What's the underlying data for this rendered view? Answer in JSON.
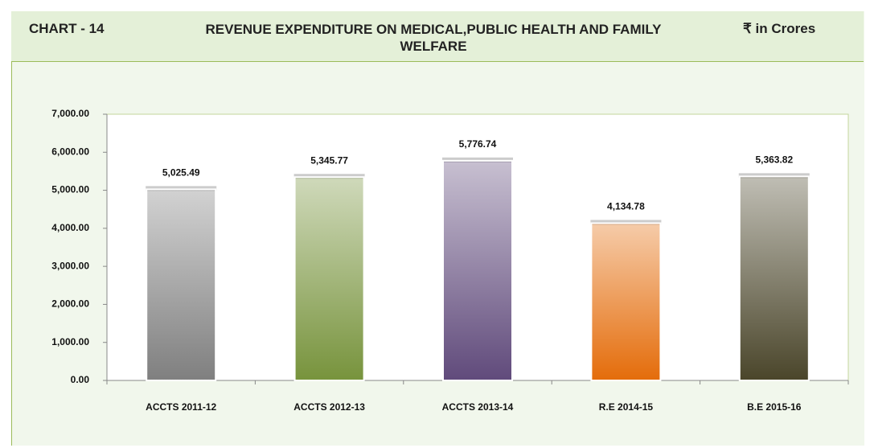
{
  "chart_data": {
    "type": "bar",
    "label": "CHART - 14",
    "title": "REVENUE EXPENDITURE ON MEDICAL,PUBLIC HEALTH AND FAMILY WELFARE",
    "unit": "₹ in Crores",
    "categories": [
      "ACCTS 2011-12",
      "ACCTS 2012-13",
      "ACCTS 2013-14",
      "R.E 2014-15",
      "B.E 2015-16"
    ],
    "values": [
      5025.49,
      5345.77,
      5776.74,
      4134.78,
      5363.82
    ],
    "value_labels": [
      "5,025.49",
      "5,345.77",
      "5,776.74",
      "4,134.78",
      "5,363.82"
    ],
    "colors": [
      "#7f7f7f",
      "#77933c",
      "#604a7b",
      "#e46c0a",
      "#4a452a"
    ],
    "ylim": [
      0,
      7000
    ],
    "yticks": [
      {
        "value": 0,
        "label": "0.00"
      },
      {
        "value": 1000,
        "label": "1,000.00"
      },
      {
        "value": 2000,
        "label": "2,000.00"
      },
      {
        "value": 3000,
        "label": "3,000.00"
      },
      {
        "value": 4000,
        "label": "4,000.00"
      },
      {
        "value": 5000,
        "label": "5,000.00"
      },
      {
        "value": 6000,
        "label": "6,000.00"
      },
      {
        "value": 7000,
        "label": "7,000.00"
      }
    ],
    "grid": false
  }
}
